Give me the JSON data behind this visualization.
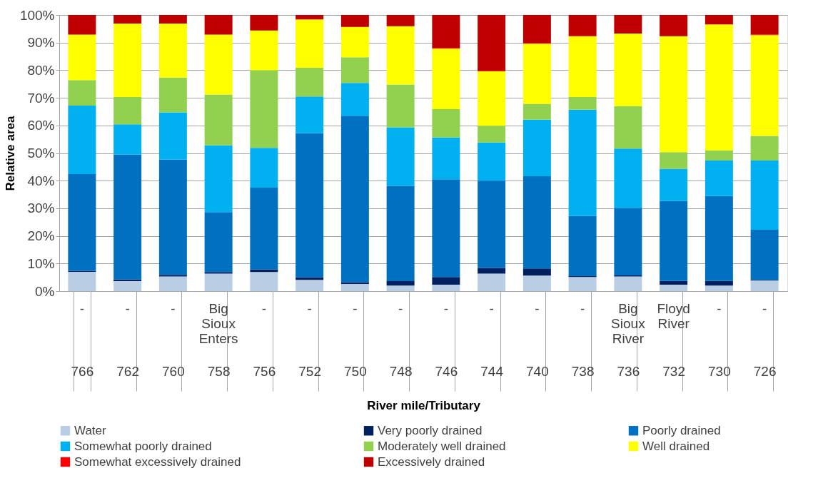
{
  "chart_data": {
    "type": "bar",
    "stacked": true,
    "xlabel": "River mile/Tributary",
    "ylabel": "Relative area",
    "categories": [
      "766",
      "762",
      "760",
      "758",
      "756",
      "752",
      "750",
      "748",
      "746",
      "744",
      "740",
      "738",
      "736",
      "732",
      "730",
      "726"
    ],
    "annotations": [
      "-",
      "-",
      "-",
      "Big Sioux Enters",
      "-",
      "-",
      "-",
      "-",
      "-",
      "-",
      "-",
      "-",
      "Big Sioux River",
      "Floyd River",
      "-",
      "-"
    ],
    "series": [
      {
        "name": "Water",
        "color": "#b9cde5",
        "values": [
          7.0,
          3.6,
          5.3,
          6.3,
          6.9,
          4.1,
          2.6,
          2.0,
          2.3,
          6.3,
          5.6,
          5.1,
          5.3,
          2.3,
          2.0,
          3.8
        ]
      },
      {
        "name": "Very poorly drained",
        "color": "#002060",
        "values": [
          0.3,
          0.6,
          0.6,
          0.6,
          0.9,
          0.9,
          0.6,
          1.6,
          2.8,
          2.1,
          2.6,
          0.3,
          0.4,
          1.4,
          1.7,
          0.3
        ]
      },
      {
        "name": "Poorly drained",
        "color": "#0070c0",
        "values": [
          35.1,
          45.3,
          41.8,
          21.7,
          29.7,
          52.2,
          60.3,
          34.5,
          35.4,
          31.6,
          33.4,
          21.8,
          24.5,
          28.9,
          30.7,
          18.1
        ]
      },
      {
        "name": "Somewhat poorly drained",
        "color": "#00b0f0",
        "values": [
          24.8,
          10.9,
          17.0,
          24.2,
          14.4,
          13.3,
          11.9,
          21.2,
          15.1,
          13.8,
          20.5,
          38.5,
          21.4,
          11.7,
          12.9,
          25.1
        ]
      },
      {
        "name": "Moderately well drained",
        "color": "#92d050",
        "values": [
          9.2,
          9.9,
          12.6,
          18.4,
          28.1,
          10.4,
          9.3,
          15.5,
          10.3,
          6.1,
          5.7,
          4.6,
          15.4,
          6.0,
          3.7,
          8.9
        ]
      },
      {
        "name": "Well drained",
        "color": "#ffff00",
        "values": [
          16.5,
          26.6,
          19.6,
          21.7,
          14.4,
          17.5,
          11.0,
          21.1,
          21.9,
          19.7,
          21.8,
          22.0,
          26.3,
          42.0,
          45.6,
          36.5
        ]
      },
      {
        "name": "Somewhat excessively drained",
        "color": "#ff0000",
        "values": [
          0,
          0,
          0,
          0,
          0,
          0,
          0,
          0,
          0.2,
          0.2,
          0.2,
          0.2,
          0,
          0,
          0,
          0.2
        ]
      },
      {
        "name": "Excessively drained",
        "color": "#c00000",
        "values": [
          7.1,
          3.1,
          3.1,
          7.1,
          5.6,
          1.6,
          4.3,
          4.1,
          12.0,
          20.2,
          10.2,
          7.5,
          6.7,
          7.7,
          3.4,
          7.1
        ]
      }
    ],
    "ylim": [
      0,
      100
    ],
    "yticks": [
      {
        "value": 0,
        "label": "0%"
      },
      {
        "value": 10,
        "label": "10%"
      },
      {
        "value": 20,
        "label": "20%"
      },
      {
        "value": 30,
        "label": "30%"
      },
      {
        "value": 40,
        "label": "40%"
      },
      {
        "value": 50,
        "label": "50%"
      },
      {
        "value": 60,
        "label": "60%"
      },
      {
        "value": 70,
        "label": "70%"
      },
      {
        "value": 80,
        "label": "80%"
      },
      {
        "value": 90,
        "label": "90%"
      },
      {
        "value": 100,
        "label": "100%"
      }
    ],
    "grid": "y",
    "legend": "bottom"
  }
}
